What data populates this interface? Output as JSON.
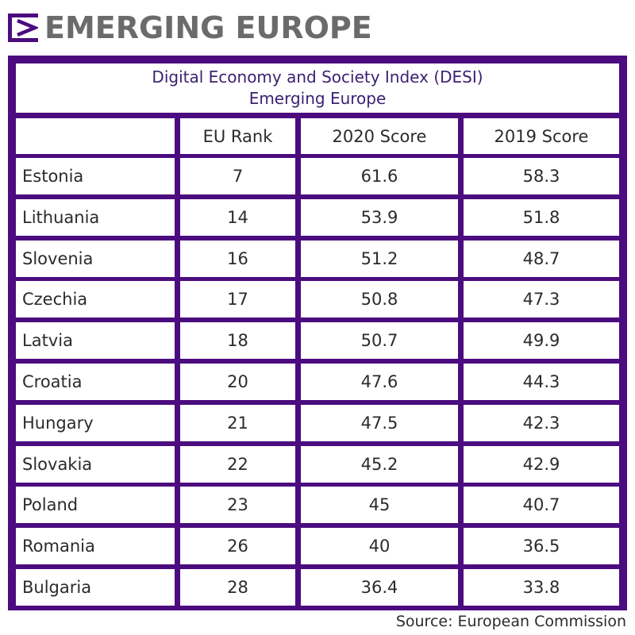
{
  "brand": {
    "name": "EMERGING EUROPE",
    "accent": "#4b0c7f"
  },
  "chart_data": {
    "type": "table",
    "title": "Digital Economy and Society Index (DESI)",
    "subtitle": "Emerging Europe",
    "columns": [
      "",
      "EU Rank",
      "2020 Score",
      "2019 Score"
    ],
    "rows": [
      {
        "country": "Estonia",
        "rank": "7",
        "score_2020": "61.6",
        "score_2019": "58.3"
      },
      {
        "country": "Lithuania",
        "rank": "14",
        "score_2020": "53.9",
        "score_2019": "51.8"
      },
      {
        "country": "Slovenia",
        "rank": "16",
        "score_2020": "51.2",
        "score_2019": "48.7"
      },
      {
        "country": "Czechia",
        "rank": "17",
        "score_2020": "50.8",
        "score_2019": "47.3"
      },
      {
        "country": "Latvia",
        "rank": "18",
        "score_2020": "50.7",
        "score_2019": "49.9"
      },
      {
        "country": "Croatia",
        "rank": "20",
        "score_2020": "47.6",
        "score_2019": "44.3"
      },
      {
        "country": "Hungary",
        "rank": "21",
        "score_2020": "47.5",
        "score_2019": "42.3"
      },
      {
        "country": "Slovakia",
        "rank": "22",
        "score_2020": "45.2",
        "score_2019": "42.9"
      },
      {
        "country": "Poland",
        "rank": "23",
        "score_2020": "45",
        "score_2019": "40.7"
      },
      {
        "country": "Romania",
        "rank": "26",
        "score_2020": "40",
        "score_2019": "36.5"
      },
      {
        "country": "Bulgaria",
        "rank": "28",
        "score_2020": "36.4",
        "score_2019": "33.8"
      }
    ]
  },
  "source": "Source: European Commission"
}
